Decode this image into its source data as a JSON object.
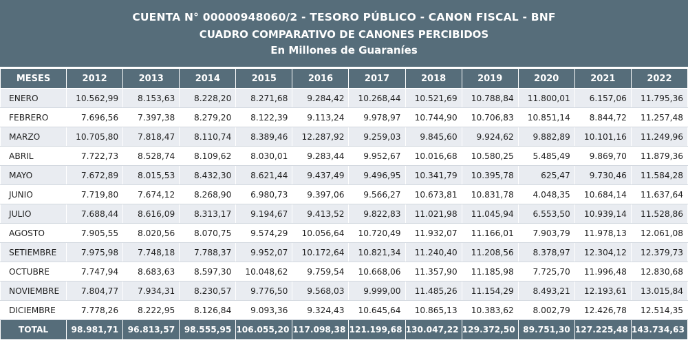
{
  "header": {
    "line1": "CUENTA N° 00000948060/2 - TESORO PÚBLICO - CANON FISCAL - BNF",
    "line2": "CUADRO COMPARATIVO DE CANONES PERCIBIDOS",
    "line3": "En Millones de Guaraníes"
  },
  "table": {
    "columns": [
      "MESES",
      "2012",
      "2013",
      "2014",
      "2015",
      "2016",
      "2017",
      "2018",
      "2019",
      "2020",
      "2021",
      "2022"
    ],
    "rows": [
      [
        "ENERO",
        "10.562,99",
        "8.153,63",
        "8.228,20",
        "8.271,68",
        "9.284,42",
        "10.268,44",
        "10.521,69",
        "10.788,84",
        "11.800,01",
        "6.157,06",
        "11.795,36"
      ],
      [
        "FEBRERO",
        "7.696,56",
        "7.397,38",
        "8.279,20",
        "8.122,39",
        "9.113,24",
        "9.978,97",
        "10.744,90",
        "10.706,83",
        "10.851,14",
        "8.844,72",
        "11.257,48"
      ],
      [
        "MARZO",
        "10.705,80",
        "7.818,47",
        "8.110,74",
        "8.389,46",
        "12.287,92",
        "9.259,03",
        "9.845,60",
        "9.924,62",
        "9.882,89",
        "10.101,16",
        "11.249,96"
      ],
      [
        "ABRIL",
        "7.722,73",
        "8.528,74",
        "8.109,62",
        "8.030,01",
        "9.283,44",
        "9.952,67",
        "10.016,68",
        "10.580,25",
        "5.485,49",
        "9.869,70",
        "11.879,36"
      ],
      [
        "MAYO",
        "7.672,89",
        "8.015,53",
        "8.432,30",
        "8.621,44",
        "9.437,49",
        "9.496,95",
        "10.341,79",
        "10.395,78",
        "625,47",
        "9.730,46",
        "11.584,28"
      ],
      [
        "JUNIO",
        "7.719,80",
        "7.674,12",
        "8.268,90",
        "6.980,73",
        "9.397,06",
        "9.566,27",
        "10.673,81",
        "10.831,78",
        "4.048,35",
        "10.684,14",
        "11.637,64"
      ],
      [
        "JULIO",
        "7.688,44",
        "8.616,09",
        "8.313,17",
        "9.194,67",
        "9.413,52",
        "9.822,83",
        "11.021,98",
        "11.045,94",
        "6.553,50",
        "10.939,14",
        "11.528,86"
      ],
      [
        "AGOSTO",
        "7.905,55",
        "8.020,56",
        "8.070,75",
        "9.574,29",
        "10.056,64",
        "10.720,49",
        "11.932,07",
        "11.166,01",
        "7.903,79",
        "11.978,13",
        "12.061,08"
      ],
      [
        "SETIEMBRE",
        "7.975,98",
        "7.748,18",
        "7.788,37",
        "9.952,07",
        "10.172,64",
        "10.821,34",
        "11.240,40",
        "11.208,56",
        "8.378,97",
        "12.304,12",
        "12.379,73"
      ],
      [
        "OCTUBRE",
        "7.747,94",
        "8.683,63",
        "8.597,30",
        "10.048,62",
        "9.759,54",
        "10.668,06",
        "11.357,90",
        "11.185,98",
        "7.725,70",
        "11.996,48",
        "12.830,68"
      ],
      [
        "NOVIEMBRE",
        "7.804,77",
        "7.934,31",
        "8.230,57",
        "9.776,50",
        "9.568,03",
        "9.999,00",
        "11.485,26",
        "11.154,29",
        "8.493,21",
        "12.193,61",
        "13.015,84"
      ],
      [
        "DICIEMBRE",
        "7.778,26",
        "8.222,95",
        "8.126,84",
        "9.093,36",
        "9.324,43",
        "10.645,64",
        "10.865,13",
        "10.383,62",
        "8.002,79",
        "12.426,78",
        "12.514,35"
      ]
    ],
    "total": [
      "TOTAL",
      "98.981,71",
      "96.813,57",
      "98.555,95",
      "106.055,20",
      "117.098,38",
      "121.199,68",
      "130.047,22",
      "129.372,50",
      "89.751,30",
      "127.225,48",
      "143.734,63"
    ]
  },
  "colors": {
    "header_bg": "#566d7a",
    "row_stripe": "#e9ecf1",
    "text": "#1f1f1f"
  }
}
